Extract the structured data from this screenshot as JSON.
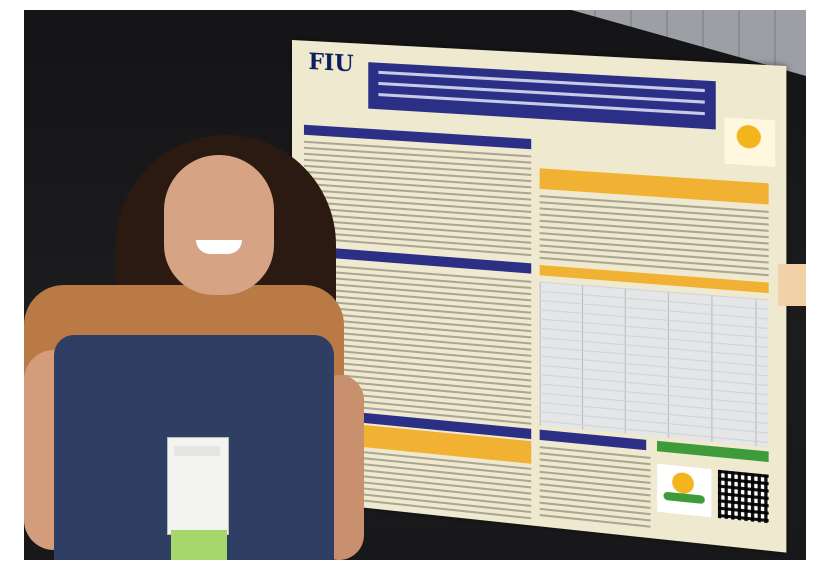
{
  "photo": {
    "subject": "photo-of-presenter-beside-poster",
    "poster": {
      "logo_text": "FIU",
      "colors": {
        "title_bar": "#2c2f86",
        "section_header_navy": "#2c2f86",
        "section_header_gold": "#f1b133",
        "background": "#efe9cf"
      }
    }
  }
}
